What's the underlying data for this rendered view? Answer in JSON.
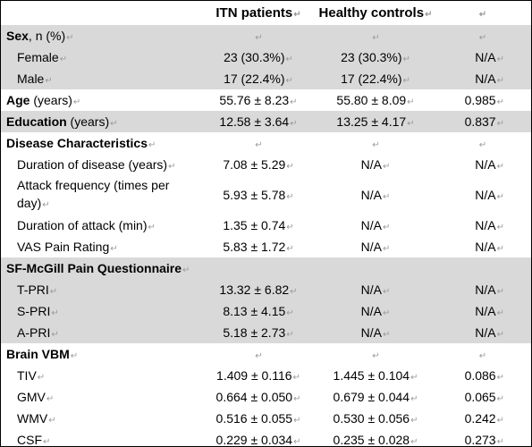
{
  "header": {
    "col1": "ITN patients",
    "col2": "Healthy controls"
  },
  "rows": [
    {
      "label_bold": "Sex",
      "label_rest": ", n (%)",
      "v1": "",
      "v2": "",
      "v3": ""
    },
    {
      "label_bold": "",
      "label_rest": "Female",
      "v1": "23 (30.3%)",
      "v2": "23 (30.3%)",
      "v3": "N/A"
    },
    {
      "label_bold": "",
      "label_rest": "Male",
      "v1": "17 (22.4%)",
      "v2": "17 (22.4%)",
      "v3": "N/A"
    },
    {
      "label_bold": "Age",
      "label_rest": " (years)",
      "v1": "55.76 ± 8.23",
      "v2": "55.80 ± 8.09",
      "v3": "0.985"
    },
    {
      "label_bold": "Education",
      "label_rest": " (years)",
      "v1": "12.58 ± 3.64",
      "v2": "13.25 ± 4.17",
      "v3": "0.837"
    },
    {
      "label_bold": "Disease Characteristics",
      "label_rest": "",
      "v1": "",
      "v2": "",
      "v3": ""
    },
    {
      "label_bold": "",
      "label_rest": "Duration of disease (years)",
      "v1": "7.08 ± 5.29",
      "v2": "N/A",
      "v3": "N/A"
    },
    {
      "label_bold": "",
      "label_rest": "Attack frequency (times per day)",
      "v1": "5.93 ± 5.78",
      "v2": "N/A",
      "v3": "N/A"
    },
    {
      "label_bold": "",
      "label_rest": "Duration of attack (min)",
      "v1": "1.35 ± 0.74",
      "v2": "N/A",
      "v3": "N/A"
    },
    {
      "label_bold": "",
      "label_rest": "VAS Pain Rating",
      "v1": "5.83 ± 1.72",
      "v2": "N/A",
      "v3": "N/A"
    },
    {
      "label_bold": "SF-McGill Pain Questionnaire",
      "label_rest": "",
      "v1": "",
      "v2": "",
      "v3": ""
    },
    {
      "label_bold": "",
      "label_rest": "T-PRI",
      "v1": "13.32 ± 6.82",
      "v2": "N/A",
      "v3": "N/A"
    },
    {
      "label_bold": "",
      "label_rest": "S-PRI",
      "v1": "8.13 ± 4.15",
      "v2": "N/A",
      "v3": "N/A"
    },
    {
      "label_bold": "",
      "label_rest": "A-PRI",
      "v1": "5.18 ± 2.73",
      "v2": "N/A",
      "v3": "N/A"
    },
    {
      "label_bold": "Brain VBM",
      "label_rest": "",
      "v1": "",
      "v2": "",
      "v3": ""
    },
    {
      "label_bold": "",
      "label_rest": "TIV",
      "v1": "1.409 ± 0.116",
      "v2": "1.445 ± 0.104",
      "v3": "0.086"
    },
    {
      "label_bold": "",
      "label_rest": "GMV",
      "v1": "0.664 ± 0.050",
      "v2": "0.679 ± 0.044",
      "v3": "0.065"
    },
    {
      "label_bold": "",
      "label_rest": "WMV",
      "v1": "0.516 ± 0.055",
      "v2": "0.530 ± 0.056",
      "v3": "0.242"
    },
    {
      "label_bold": "",
      "label_rest": "CSF",
      "v1": "0.229 ± 0.034",
      "v2": "0.235 ± 0.028",
      "v3": "0.273"
    }
  ],
  "marks": {
    "return": "↵",
    "cell_end": "↵"
  }
}
